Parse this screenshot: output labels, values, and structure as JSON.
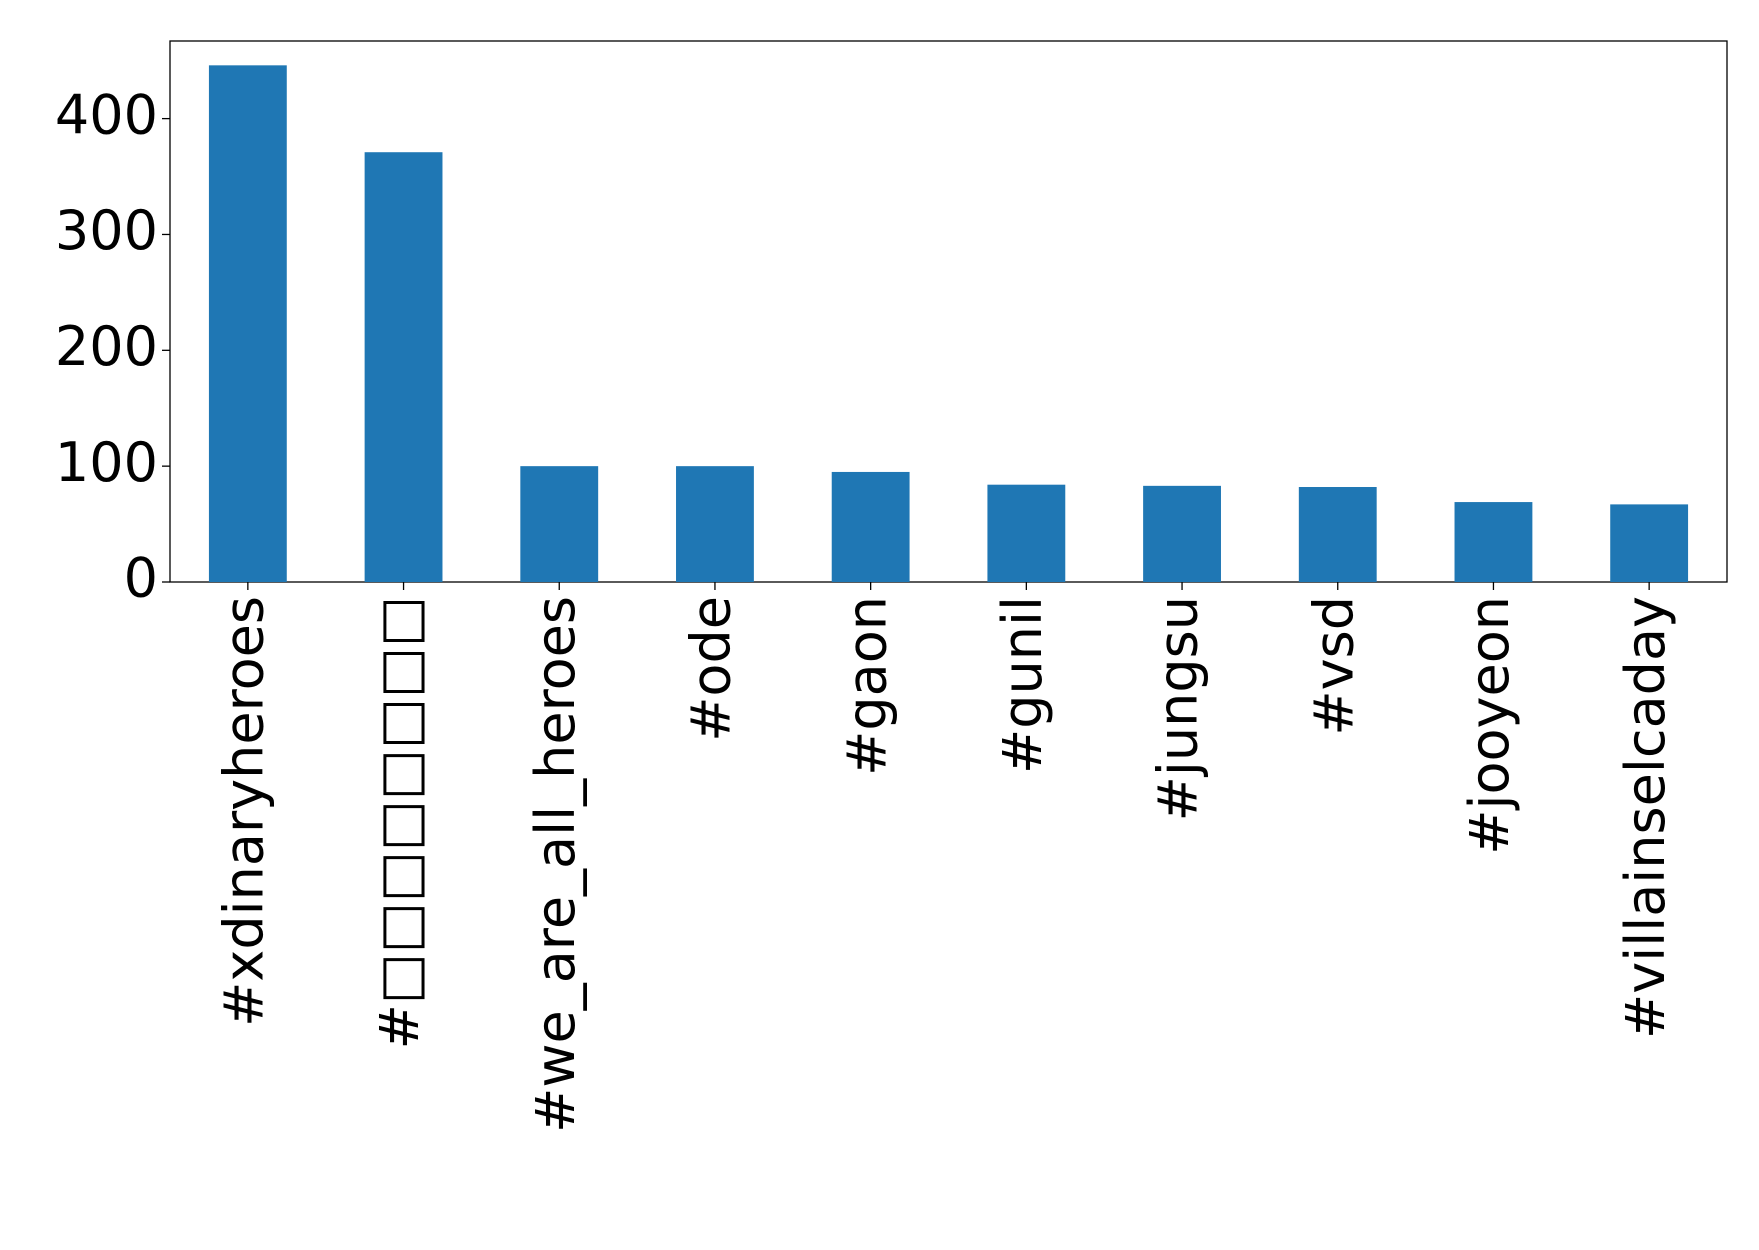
{
  "chart_data": {
    "type": "bar",
    "categories": [
      "#xdinaryheroes",
      "#□□□□□□□□",
      "#we_are_all_heroes",
      "#ode",
      "#gaon",
      "#gunil",
      "#jungsu",
      "#vsd",
      "#jooyeon",
      "#villainselcaday"
    ],
    "values": [
      446,
      371,
      100,
      100,
      95,
      84,
      83,
      82,
      69,
      67
    ],
    "color": "#1f77b4",
    "ylim": [
      0,
      467
    ],
    "yticks": [
      0,
      100,
      200,
      300,
      400
    ],
    "grid": false
  }
}
